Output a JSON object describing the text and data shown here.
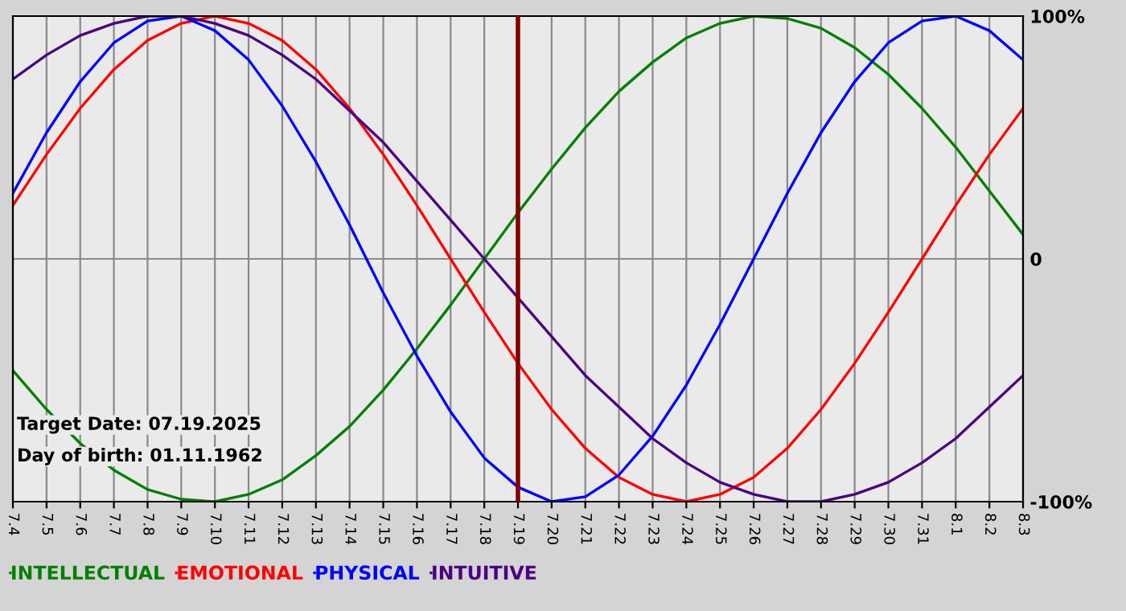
{
  "chart_data": {
    "type": "line",
    "categories": [
      "7.4",
      "7.5",
      "7.6",
      "7.7",
      "7.8",
      "7.9",
      "7.10",
      "7.11",
      "7.12",
      "7.13",
      "7.14",
      "7.15",
      "7.16",
      "7.17",
      "7.18",
      "7.19",
      "7.20",
      "7.21",
      "7.22",
      "7.23",
      "7.24",
      "7.25",
      "7.26",
      "7.27",
      "7.28",
      "7.29",
      "7.30",
      "7.31",
      "8.1",
      "8.2",
      "8.3"
    ],
    "series": [
      {
        "name": "INTELLECTUAL",
        "color": "#008000",
        "values": [
          -46,
          -62,
          -76,
          -87,
          -95,
          -99,
          -100,
          -97,
          -91,
          -81,
          -69,
          -54,
          -37,
          -19,
          0,
          19,
          37,
          54,
          69,
          81,
          91,
          97,
          100,
          99,
          95,
          87,
          76,
          62,
          46,
          28,
          10
        ]
      },
      {
        "name": "EMOTIONAL",
        "color": "#ff0000",
        "values": [
          22,
          43,
          62,
          78,
          90,
          97,
          100,
          97,
          90,
          78,
          62,
          43,
          22,
          0,
          -22,
          -43,
          -62,
          -78,
          -90,
          -97,
          -100,
          -97,
          -90,
          -78,
          -62,
          -43,
          -22,
          0,
          22,
          43,
          62
        ]
      },
      {
        "name": "PHYSICAL",
        "color": "#0000ff",
        "values": [
          27,
          52,
          73,
          89,
          98,
          100,
          94,
          82,
          63,
          40,
          14,
          -14,
          -40,
          -63,
          -82,
          -94,
          -100,
          -98,
          -89,
          -73,
          -52,
          -27,
          0,
          27,
          52,
          73,
          89,
          98,
          100,
          94,
          82
        ]
      },
      {
        "name": "INTUITIVE",
        "color": "#4b0082",
        "values": [
          74,
          84,
          92,
          97,
          100,
          100,
          97,
          92,
          84,
          74,
          61,
          48,
          32,
          16,
          0,
          -16,
          -32,
          -48,
          -61,
          -74,
          -84,
          -92,
          -97,
          -100,
          -100,
          -97,
          -92,
          -84,
          -74,
          -61,
          -48
        ]
      }
    ],
    "ylim": [
      -100,
      100
    ],
    "yticks": [
      {
        "value": 100,
        "label": "100%"
      },
      0,
      {
        "value": -100,
        "label": "-100%"
      }
    ],
    "grid": true,
    "legend": "bottom left",
    "marker": "none",
    "line_style": "solid",
    "ref_lines": [
      {
        "axis": "x",
        "value": "7.19",
        "color": "#800000"
      }
    ],
    "annotations": [
      "Target Date: 07.19.2025",
      "Day of birth: 01.11.1962"
    ]
  }
}
